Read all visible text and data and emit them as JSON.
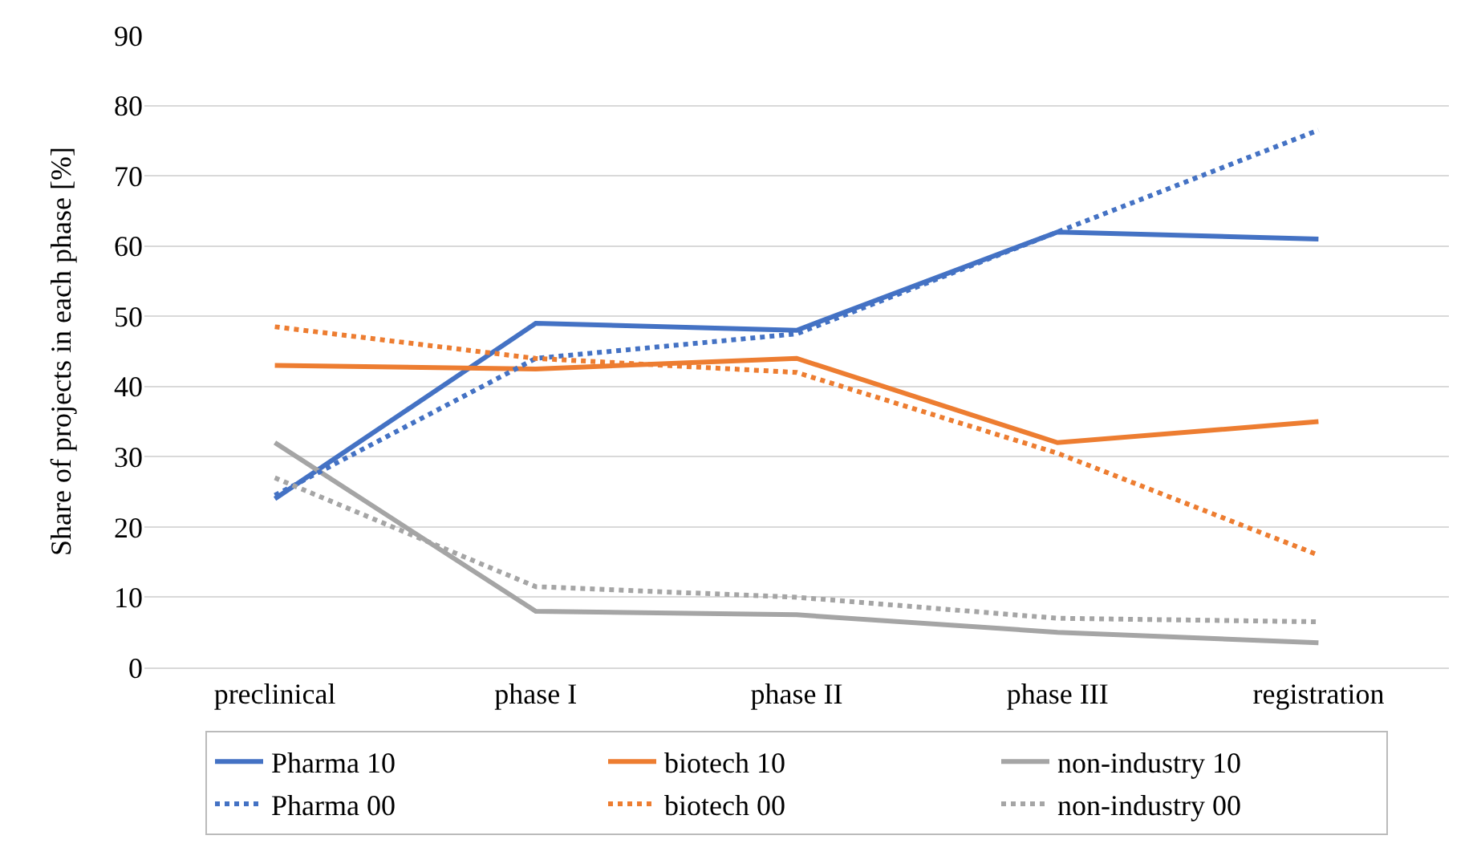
{
  "chart_data": {
    "type": "line",
    "ylabel": "Share of projects in each phase [%]",
    "categories": [
      "preclinical",
      "phase I",
      "phase II",
      "phase III",
      "registration"
    ],
    "series": [
      {
        "name": "Pharma 10",
        "color": "#4472c4",
        "line_style": "solid",
        "values": [
          24,
          49,
          48,
          62,
          61
        ]
      },
      {
        "name": "biotech 10",
        "color": "#ed7d31",
        "line_style": "solid",
        "values": [
          43,
          42.5,
          44,
          32,
          35
        ]
      },
      {
        "name": "non-industry 10",
        "color": "#a5a5a5",
        "line_style": "solid",
        "values": [
          32,
          8,
          7.5,
          5,
          3.5
        ]
      },
      {
        "name": "Pharma 00",
        "color": "#4472c4",
        "line_style": "dotted",
        "values": [
          24.5,
          44,
          47.5,
          62,
          76.5
        ]
      },
      {
        "name": "biotech 00",
        "color": "#ed7d31",
        "line_style": "dotted",
        "values": [
          48.5,
          44,
          42,
          30.5,
          16
        ]
      },
      {
        "name": "non-industry 00",
        "color": "#a5a5a5",
        "line_style": "dotted",
        "values": [
          27,
          11.5,
          10,
          7,
          6.5
        ]
      }
    ],
    "ylim": [
      0,
      90
    ],
    "yticks": [
      0,
      10,
      20,
      30,
      40,
      50,
      60,
      70,
      80,
      90
    ],
    "grid": "y",
    "legend": "bottom",
    "marker": "none"
  }
}
